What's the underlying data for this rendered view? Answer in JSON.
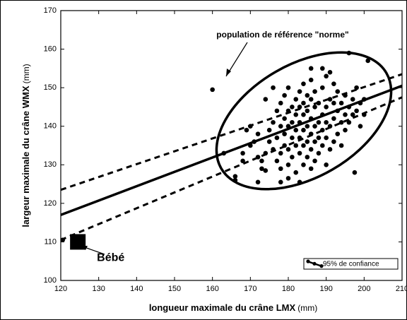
{
  "chart_data": {
    "type": "scatter",
    "xlabel": "longueur maximale du crâne LMX",
    "xlabel_unit": "(mm)",
    "ylabel": "largeur maximale du crâne WMX",
    "ylabel_unit": "(mm)",
    "xlim": [
      120,
      210
    ],
    "xticks": [
      120,
      130,
      140,
      150,
      160,
      170,
      180,
      190,
      200,
      210
    ],
    "ylim": [
      100,
      170
    ],
    "yticks": [
      100,
      110,
      120,
      130,
      140,
      150,
      160,
      170
    ],
    "color": "#000000",
    "legend": "lower right",
    "x": [
      160,
      201,
      196,
      197.5,
      120.5,
      166,
      166,
      172,
      178,
      183,
      168,
      168,
      170,
      171,
      172,
      172,
      173,
      173,
      174,
      174,
      175,
      175,
      176,
      176,
      177,
      177,
      177,
      178,
      178,
      178,
      178,
      179,
      179,
      179,
      179,
      180,
      180,
      180,
      180,
      180,
      181,
      181,
      181,
      181,
      182,
      182,
      182,
      182,
      182,
      183,
      183,
      183,
      183,
      183,
      184,
      184,
      184,
      184,
      184,
      184,
      185,
      185,
      185,
      185,
      185,
      186,
      186,
      186,
      186,
      186,
      186,
      187,
      187,
      187,
      187,
      187,
      188,
      188,
      188,
      188,
      189,
      189,
      189,
      189,
      190,
      190,
      190,
      190,
      190,
      191,
      191,
      191,
      191,
      192,
      192,
      192,
      192,
      193,
      193,
      193,
      194,
      194,
      194,
      195,
      195,
      195,
      196,
      196,
      197,
      197,
      198,
      198,
      199,
      199,
      200,
      200,
      176,
      174,
      170,
      169,
      163,
      189,
      186,
      180
    ],
    "y": [
      149.5,
      157,
      159,
      128,
      110.5,
      127,
      126,
      125.5,
      125.5,
      125.5,
      133,
      131,
      135,
      136,
      138,
      132,
      131,
      129,
      128.5,
      133,
      136,
      139,
      134,
      141,
      131,
      137,
      144,
      129,
      133,
      140,
      146,
      135,
      138,
      142,
      148,
      130,
      134,
      140,
      144,
      150,
      132,
      137,
      141,
      145,
      128,
      135,
      139,
      143,
      147,
      133,
      137,
      141,
      145,
      149,
      130,
      135,
      139,
      143,
      146,
      151,
      132,
      136,
      140,
      144,
      148,
      129,
      134,
      138,
      142,
      147,
      152,
      131,
      136,
      140,
      145,
      149,
      133,
      137,
      141,
      146,
      135,
      139,
      143,
      150,
      130,
      137,
      141,
      145,
      153,
      134,
      140,
      147,
      154,
      136,
      142,
      146,
      151,
      138,
      144,
      149,
      135,
      141,
      146,
      139,
      143,
      148,
      141,
      145,
      143,
      147,
      144,
      150,
      146,
      140,
      147,
      143,
      150,
      147,
      140,
      139,
      133,
      155,
      155,
      126.5
    ],
    "highlight": {
      "label": "Bébé",
      "x": 124.5,
      "y": 110
    },
    "lines": [
      {
        "style": "solid",
        "x": [
          120,
          210
        ],
        "y": [
          117,
          150.5
        ]
      },
      {
        "name": "95% de confiance",
        "style": "dashed",
        "x": [
          120,
          210
        ],
        "y": [
          123.5,
          153.5
        ]
      },
      {
        "style": "dashed",
        "x": [
          120,
          210
        ],
        "y": [
          110.5,
          147.5
        ]
      }
    ],
    "annotation": "population de référence \"norme\""
  }
}
